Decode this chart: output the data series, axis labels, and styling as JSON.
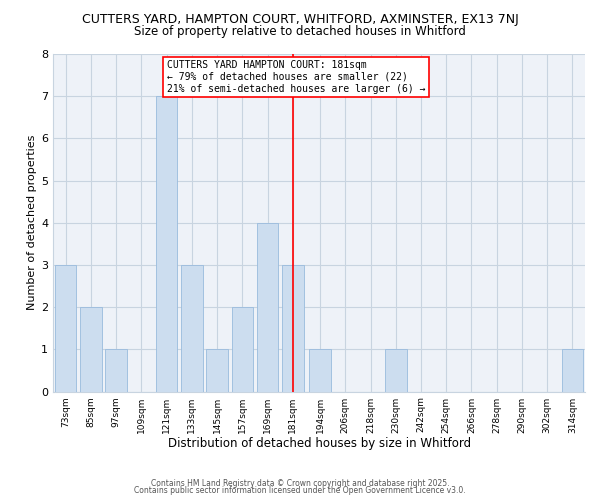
{
  "title": "CUTTERS YARD, HAMPTON COURT, WHITFORD, AXMINSTER, EX13 7NJ",
  "subtitle": "Size of property relative to detached houses in Whitford",
  "xlabel": "Distribution of detached houses by size in Whitford",
  "ylabel": "Number of detached properties",
  "bar_color": "#ccddef",
  "bar_edge_color": "#99bbdd",
  "bins": [
    73,
    85,
    97,
    109,
    121,
    133,
    145,
    157,
    169,
    181,
    194,
    206,
    218,
    230,
    242,
    254,
    266,
    278,
    290,
    302,
    314
  ],
  "counts": [
    3,
    2,
    1,
    0,
    7,
    3,
    1,
    2,
    4,
    3,
    1,
    0,
    0,
    1,
    0,
    0,
    0,
    0,
    0,
    0,
    1
  ],
  "tick_labels": [
    "73sqm",
    "85sqm",
    "97sqm",
    "109sqm",
    "121sqm",
    "133sqm",
    "145sqm",
    "157sqm",
    "169sqm",
    "181sqm",
    "194sqm",
    "206sqm",
    "218sqm",
    "230sqm",
    "242sqm",
    "254sqm",
    "266sqm",
    "278sqm",
    "290sqm",
    "302sqm",
    "314sqm"
  ],
  "red_line_x": 181,
  "annotation_title": "CUTTERS YARD HAMPTON COURT: 181sqm",
  "annotation_line1": "← 79% of detached houses are smaller (22)",
  "annotation_line2": "21% of semi-detached houses are larger (6) →",
  "ylim": [
    0,
    8
  ],
  "yticks": [
    0,
    1,
    2,
    3,
    4,
    5,
    6,
    7,
    8
  ],
  "background_color": "#ffffff",
  "plot_bg_color": "#eef2f8",
  "footer1": "Contains HM Land Registry data © Crown copyright and database right 2025.",
  "footer2": "Contains public sector information licensed under the Open Government Licence v3.0.",
  "grid_color": "#c8d4e0",
  "title_fontsize": 9,
  "subtitle_fontsize": 8.5,
  "xlabel_fontsize": 8.5,
  "ylabel_fontsize": 8,
  "tick_fontsize": 6.5
}
